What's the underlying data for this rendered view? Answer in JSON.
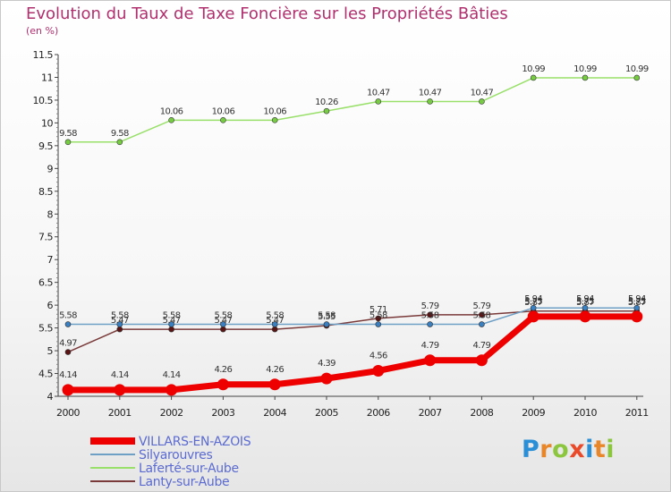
{
  "chart_data": {
    "type": "line",
    "title": "Evolution du Taux de Taxe Foncière sur les Propriétés Bâties",
    "subtitle": "(en %)",
    "x": [
      "2000",
      "2001",
      "2002",
      "2003",
      "2004",
      "2005",
      "2006",
      "2007",
      "2008",
      "2009",
      "2010",
      "2011"
    ],
    "y_ticks": [
      "4",
      "4.5",
      "5",
      "5.5",
      "6",
      "6.5",
      "7",
      "7.5",
      "8",
      "8.5",
      "9",
      "9.5",
      "10",
      "10.5",
      "11",
      "11.5"
    ],
    "ylim": [
      4,
      11.5
    ],
    "grid": false,
    "legend_position": "bottom-left",
    "series": [
      {
        "name": "VILLARS-EN-AZOIS",
        "color": "#ee0000",
        "marker_color": "#ee0000",
        "width": 7,
        "values": [
          4.14,
          4.14,
          4.14,
          4.26,
          4.26,
          4.39,
          4.56,
          4.79,
          4.79,
          5.75,
          5.75,
          5.75
        ],
        "labels": [
          "4.14",
          "4.14",
          "4.14",
          "4.26",
          "4.26",
          "4.39",
          "4.56",
          "4.79",
          "4.79",
          "5.75",
          "5.75",
          "5.75"
        ]
      },
      {
        "name": "Silyarouvres",
        "color": "#6e9fc5",
        "marker_color": "#3a7fc0",
        "width": 1.5,
        "values": [
          5.58,
          5.58,
          5.58,
          5.58,
          5.58,
          5.58,
          5.58,
          5.58,
          5.58,
          5.94,
          5.94,
          5.94
        ],
        "labels": [
          "5.58",
          "5.58",
          "5.58",
          "5.58",
          "5.58",
          "5.58",
          "5.58",
          "5.58",
          "5.58",
          "5.94",
          "5.94",
          "5.94"
        ]
      },
      {
        "name": "Laferté-sur-Aube",
        "color": "#99e06a",
        "marker_color": "#77cc44",
        "width": 1.5,
        "values": [
          9.58,
          9.58,
          10.06,
          10.06,
          10.06,
          10.26,
          10.47,
          10.47,
          10.47,
          10.99,
          10.99,
          10.99
        ],
        "labels": [
          "9.58",
          "9.58",
          "10.06",
          "10.06",
          "10.06",
          "10.26",
          "10.47",
          "10.47",
          "10.47",
          "10.99",
          "10.99",
          "10.99"
        ]
      },
      {
        "name": "Lanty-sur-Aube",
        "color": "#7a3a3a",
        "marker_color": "#5a1414",
        "width": 1.5,
        "values": [
          4.97,
          5.47,
          5.47,
          5.47,
          5.47,
          5.55,
          5.71,
          5.79,
          5.79,
          5.87,
          5.87,
          5.87
        ],
        "labels": [
          "4.97",
          "5.47",
          "5.47",
          "5.47",
          "5.47",
          "5.55",
          "5.71",
          "5.79",
          "5.79",
          "5.87",
          "5.87",
          "5.87"
        ]
      }
    ]
  },
  "legend": {
    "items": [
      {
        "label": "VILLARS-EN-AZOIS",
        "color": "#ee0000"
      },
      {
        "label": "Silyarouvres",
        "color": "#6e9fc5"
      },
      {
        "label": "Laferté-sur-Aube",
        "color": "#99e06a"
      },
      {
        "label": "Lanty-sur-Aube",
        "color": "#7a3a3a"
      }
    ]
  },
  "brand": {
    "letters": [
      "P",
      "r",
      "o",
      "x",
      "i",
      "t",
      "i"
    ],
    "colors": [
      "#2a8fd6",
      "#e8862a",
      "#8cc63f",
      "#e84a2a",
      "#2a8fd6",
      "#e8862a",
      "#8cc63f"
    ]
  }
}
